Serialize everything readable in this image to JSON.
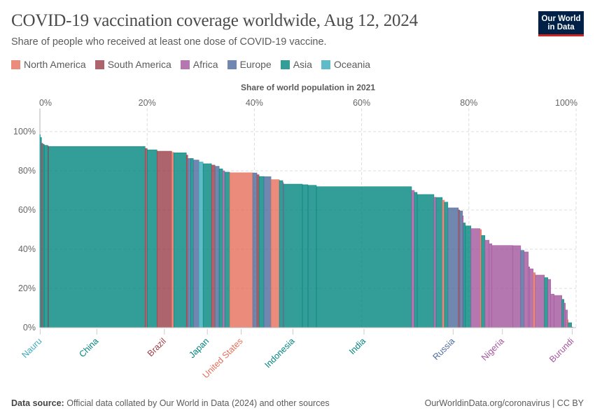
{
  "header": {
    "title": "COVID-19 vaccination coverage worldwide, Aug 12, 2024",
    "subtitle": "Share of people who received at least one dose of COVID-19 vaccine.",
    "logo_text": [
      "Our World",
      "in Data"
    ]
  },
  "footer": {
    "source_label": "Data source:",
    "source_text": "Official data collated by Our World in Data (2024) and other sources",
    "link": "OurWorldinData.org/coronavirus | CC BY"
  },
  "chart_data": {
    "type": "bar",
    "variant": "variable-width",
    "xlabel": "Share of world population in 2021",
    "ylabel": "",
    "xlim": [
      0,
      100
    ],
    "ylim": [
      0,
      100
    ],
    "x_ticks": [
      "0%",
      "20%",
      "40%",
      "60%",
      "80%",
      "100%"
    ],
    "y_ticks": [
      "0%",
      "20%",
      "40%",
      "60%",
      "80%",
      "100%"
    ],
    "grid": true,
    "legend_position": "top-left",
    "legend": [
      {
        "name": "North America",
        "color": "#e56e5a"
      },
      {
        "name": "South America",
        "color": "#9a3d47"
      },
      {
        "name": "Africa",
        "color": "#a2559c"
      },
      {
        "name": "Europe",
        "color": "#4c6a9c"
      },
      {
        "name": "Asia",
        "color": "#00847e"
      },
      {
        "name": "Oceania",
        "color": "#38aaba"
      }
    ],
    "segments": [
      {
        "region": "Oceania",
        "width": 0.1,
        "value": 98.5,
        "label": "Nauru"
      },
      {
        "region": "Asia",
        "width": 0.2,
        "value": 97
      },
      {
        "region": "South America",
        "width": 0.26,
        "value": 94
      },
      {
        "region": "Asia",
        "width": 0.26,
        "value": 93.5
      },
      {
        "region": "Asia",
        "width": 0.65,
        "value": 93
      },
      {
        "region": "South America",
        "width": 0.13,
        "value": 92.6
      },
      {
        "region": "Asia",
        "width": 18.02,
        "value": 92.4,
        "label": "China"
      },
      {
        "region": "South America",
        "width": 0.39,
        "value": 91.4
      },
      {
        "region": "Asia",
        "width": 1.83,
        "value": 90.7
      },
      {
        "region": "South America",
        "width": 2.74,
        "value": 90,
        "label": "Brazil"
      },
      {
        "region": "North America",
        "width": 0.39,
        "value": 89.4
      },
      {
        "region": "Asia",
        "width": 2.35,
        "value": 89.2
      },
      {
        "region": "South America",
        "width": 0.26,
        "value": 88
      },
      {
        "region": "Europe",
        "width": 0.52,
        "value": 86.3
      },
      {
        "region": "Asia",
        "width": 0.52,
        "value": 86.3
      },
      {
        "region": "Europe",
        "width": 1.04,
        "value": 85.5
      },
      {
        "region": "Oceania",
        "width": 0.78,
        "value": 84.5
      },
      {
        "region": "Asia",
        "width": 1.57,
        "value": 83.6,
        "label": "Japan"
      },
      {
        "region": "South America",
        "width": 0.65,
        "value": 82.9
      },
      {
        "region": "Europe",
        "width": 0.78,
        "value": 82.3
      },
      {
        "region": "Asia",
        "width": 0.65,
        "value": 81
      },
      {
        "region": "Africa",
        "width": 0.39,
        "value": 80
      },
      {
        "region": "Asia",
        "width": 0.91,
        "value": 79.3
      },
      {
        "region": "North America",
        "width": 4.31,
        "value": 79,
        "label": "United States"
      },
      {
        "region": "Europe",
        "width": 0.78,
        "value": 78.9
      },
      {
        "region": "South America",
        "width": 0.39,
        "value": 78
      },
      {
        "region": "Asia",
        "width": 0.91,
        "value": 77.1
      },
      {
        "region": "Europe",
        "width": 1.31,
        "value": 77
      },
      {
        "region": "North America",
        "width": 1.57,
        "value": 75.5
      },
      {
        "region": "Asia",
        "width": 0.65,
        "value": 75
      },
      {
        "region": "Africa",
        "width": 0.13,
        "value": 74
      },
      {
        "region": "Asia",
        "width": 3.52,
        "value": 73.2,
        "label": "Indonesia"
      },
      {
        "region": "Asia",
        "width": 1.04,
        "value": 72.9
      },
      {
        "region": "Asia",
        "width": 1.57,
        "value": 72.6
      },
      {
        "region": "Asia",
        "width": 17.75,
        "value": 71.9,
        "label": "India"
      },
      {
        "region": "Africa",
        "width": 0.52,
        "value": 70
      },
      {
        "region": "Asia",
        "width": 0.52,
        "value": 69
      },
      {
        "region": "Asia",
        "width": 3.13,
        "value": 67.9
      },
      {
        "region": "Africa",
        "width": 0.39,
        "value": 66.5
      },
      {
        "region": "Asia",
        "width": 1.17,
        "value": 66.4
      },
      {
        "region": "North America",
        "width": 0.39,
        "value": 65
      },
      {
        "region": "Asia",
        "width": 0.65,
        "value": 64
      },
      {
        "region": "Europe",
        "width": 1.96,
        "value": 61.1,
        "label": "Russia"
      },
      {
        "region": "South America",
        "width": 0.26,
        "value": 60
      },
      {
        "region": "Europe",
        "width": 0.52,
        "value": 59.5
      },
      {
        "region": "Africa",
        "width": 0.13,
        "value": 57
      },
      {
        "region": "Asia",
        "width": 0.39,
        "value": 53.4
      },
      {
        "region": "Asia",
        "width": 1.04,
        "value": 51.9
      },
      {
        "region": "Africa",
        "width": 1.7,
        "value": 50.5
      },
      {
        "region": "North America",
        "width": 0.26,
        "value": 50
      },
      {
        "region": "Asia",
        "width": 0.65,
        "value": 47
      },
      {
        "region": "Africa",
        "width": 0.78,
        "value": 44.6
      },
      {
        "region": "Africa",
        "width": 0.52,
        "value": 42.8
      },
      {
        "region": "Africa",
        "width": 3.92,
        "value": 41.9,
        "label": "Nigeria"
      },
      {
        "region": "Africa",
        "width": 1.44,
        "value": 41.8
      },
      {
        "region": "Europe",
        "width": 0.65,
        "value": 39.4
      },
      {
        "region": "Africa",
        "width": 0.78,
        "value": 38.6
      },
      {
        "region": "Africa",
        "width": 0.26,
        "value": 31
      },
      {
        "region": "Africa",
        "width": 0.65,
        "value": 30
      },
      {
        "region": "North America",
        "width": 0.39,
        "value": 28
      },
      {
        "region": "Africa",
        "width": 1.7,
        "value": 26.8
      },
      {
        "region": "Asia",
        "width": 0.65,
        "value": 25.5
      },
      {
        "region": "Africa",
        "width": 0.52,
        "value": 24.6
      },
      {
        "region": "Africa",
        "width": 0.65,
        "value": 17.1
      },
      {
        "region": "Africa",
        "width": 1.44,
        "value": 16.4
      },
      {
        "region": "Asia",
        "width": 0.39,
        "value": 14.4
      },
      {
        "region": "Africa",
        "width": 0.26,
        "value": 12.5
      },
      {
        "region": "Africa",
        "width": 0.39,
        "value": 9
      },
      {
        "region": "North America",
        "width": 0.13,
        "value": 4
      },
      {
        "region": "Asia",
        "width": 0.65,
        "value": 2.5
      },
      {
        "region": "Africa",
        "width": 0.2,
        "value": 0.3,
        "label": "Burundi"
      }
    ]
  }
}
